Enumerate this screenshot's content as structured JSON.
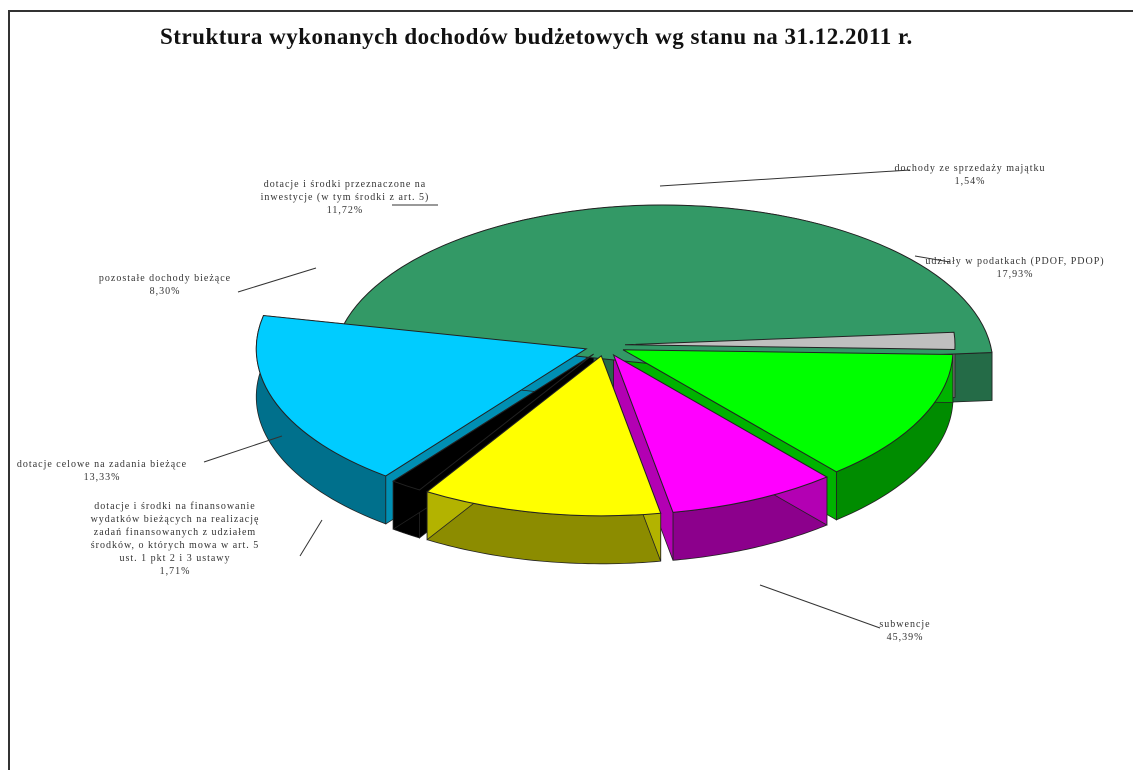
{
  "chart_data": {
    "type": "pie",
    "title": "Struktura wykonanych dochodów budżetowych wg stanu na 31.12.2011 r.",
    "slices": [
      {
        "label": "subwencje",
        "value_text": "45,39%",
        "value": 45.39,
        "color": "#339966"
      },
      {
        "label": "dotacje i środki na finansowanie wydatków bieżących na realizację zadań finansowanych z udziałem środków, o których mowa w art. 5 ust. 1 pkt 2 i 3 ustawy",
        "value_text": "1,71%",
        "value": 1.71,
        "color": "#bfbfbf"
      },
      {
        "label": "dotacje celowe na zadania bieżące",
        "value_text": "13,33%",
        "value": 13.33,
        "color": "#00ff00"
      },
      {
        "label": "pozostałe dochody bieżące",
        "value_text": "8,30%",
        "value": 8.3,
        "color": "#ff00ff"
      },
      {
        "label": "dotacje i środki przeznaczone na inwestycje (w tym środki z art. 5)",
        "value_text": "11,72%",
        "value": 11.72,
        "color": "#ffff00"
      },
      {
        "label": "dochody ze sprzedaży majątku",
        "value_text": "1,54%",
        "value": 1.54,
        "color": "#000000"
      },
      {
        "label": "udziały w podatkach (PDOF, PDOP)",
        "value_text": "17,93%",
        "value": 17.93,
        "color": "#00ccff"
      }
    ]
  }
}
